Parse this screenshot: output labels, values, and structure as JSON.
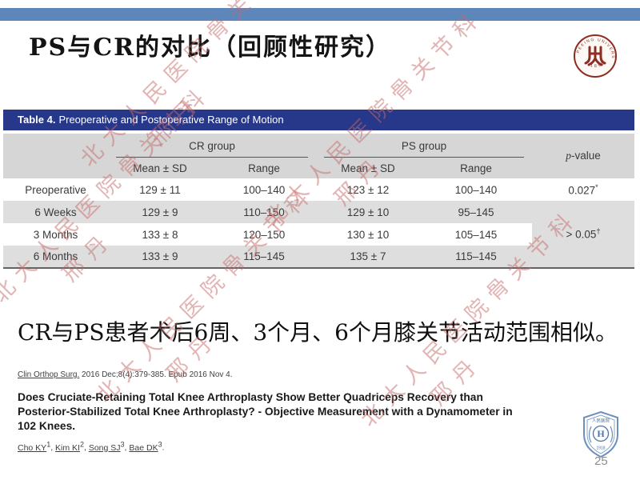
{
  "slide": {
    "title": "PS与CR的对比（回顾性研究）",
    "conclusion": "CR与PS患者术后6周、3个月、6个月膝关节活动范围相似。",
    "page_number": "25"
  },
  "table": {
    "caption_label": "Table 4.",
    "caption_text": "Preoperative and Postoperative Range of Motion",
    "group_headers": [
      "CR group",
      "PS group"
    ],
    "pvalue_header_italic": "p",
    "pvalue_header_rest": "-value",
    "sub_headers": [
      "Mean ± SD",
      "Range",
      "Mean ± SD",
      "Range"
    ],
    "rows": [
      {
        "label": "Preoperative",
        "cr_mean": "129 ± 11",
        "cr_range": "100–140",
        "ps_mean": "123 ± 12",
        "ps_range": "100–140",
        "p": "0.027",
        "p_sup": "*"
      },
      {
        "label": "6 Weeks",
        "cr_mean": "129 ± 9",
        "cr_range": "110–150",
        "ps_mean": "129 ± 10",
        "ps_range": "95–145"
      },
      {
        "label": "3 Months",
        "cr_mean": "133 ± 8",
        "cr_range": "120–150",
        "ps_mean": "130 ± 10",
        "ps_range": "105–145"
      },
      {
        "label": "6 Months",
        "cr_mean": "133 ± 9",
        "cr_range": "115–145",
        "ps_mean": "135 ± 7",
        "ps_range": "115–145"
      }
    ],
    "merged_p": "> 0.05",
    "merged_p_sup": "†"
  },
  "reference": {
    "journal": "Clin Orthop Surg.",
    "citation_rest": " 2016 Dec;8(4):379-385. Epub 2016 Nov 4.",
    "paper_title": "Does Cruciate-Retaining Total Knee Arthroplasty Show Better Quadriceps Recovery than\nPosterior-Stabilized Total Knee Arthroplasty? - Objective Measurement with a Dynamometer in\n102 Knees.",
    "authors": [
      {
        "name": "Cho KY",
        "sup": "1"
      },
      {
        "name": "Kim KI",
        "sup": "2"
      },
      {
        "name": "Song SJ",
        "sup": "3"
      },
      {
        "name": "Bae DK",
        "sup": "3"
      }
    ]
  },
  "watermark": {
    "line1": "北大人民医院骨关节科",
    "line2": "邢丹"
  },
  "logos": {
    "pku_ring_text": "PEKING UNIVERSITY",
    "pku_year": "1898",
    "hospital_name": "人民医院",
    "hospital_monogram": "H",
    "hospital_year": "1918"
  },
  "colors": {
    "top_bar": "#5d87ba",
    "table_caption_bg": "#27388a",
    "table_header_bg": "#d6d6d6",
    "table_row_alt_bg": "#dedede",
    "seal_red": "#8e2b23",
    "shield_blue": "#6b8fbe",
    "watermark_pink": "#c56969"
  }
}
